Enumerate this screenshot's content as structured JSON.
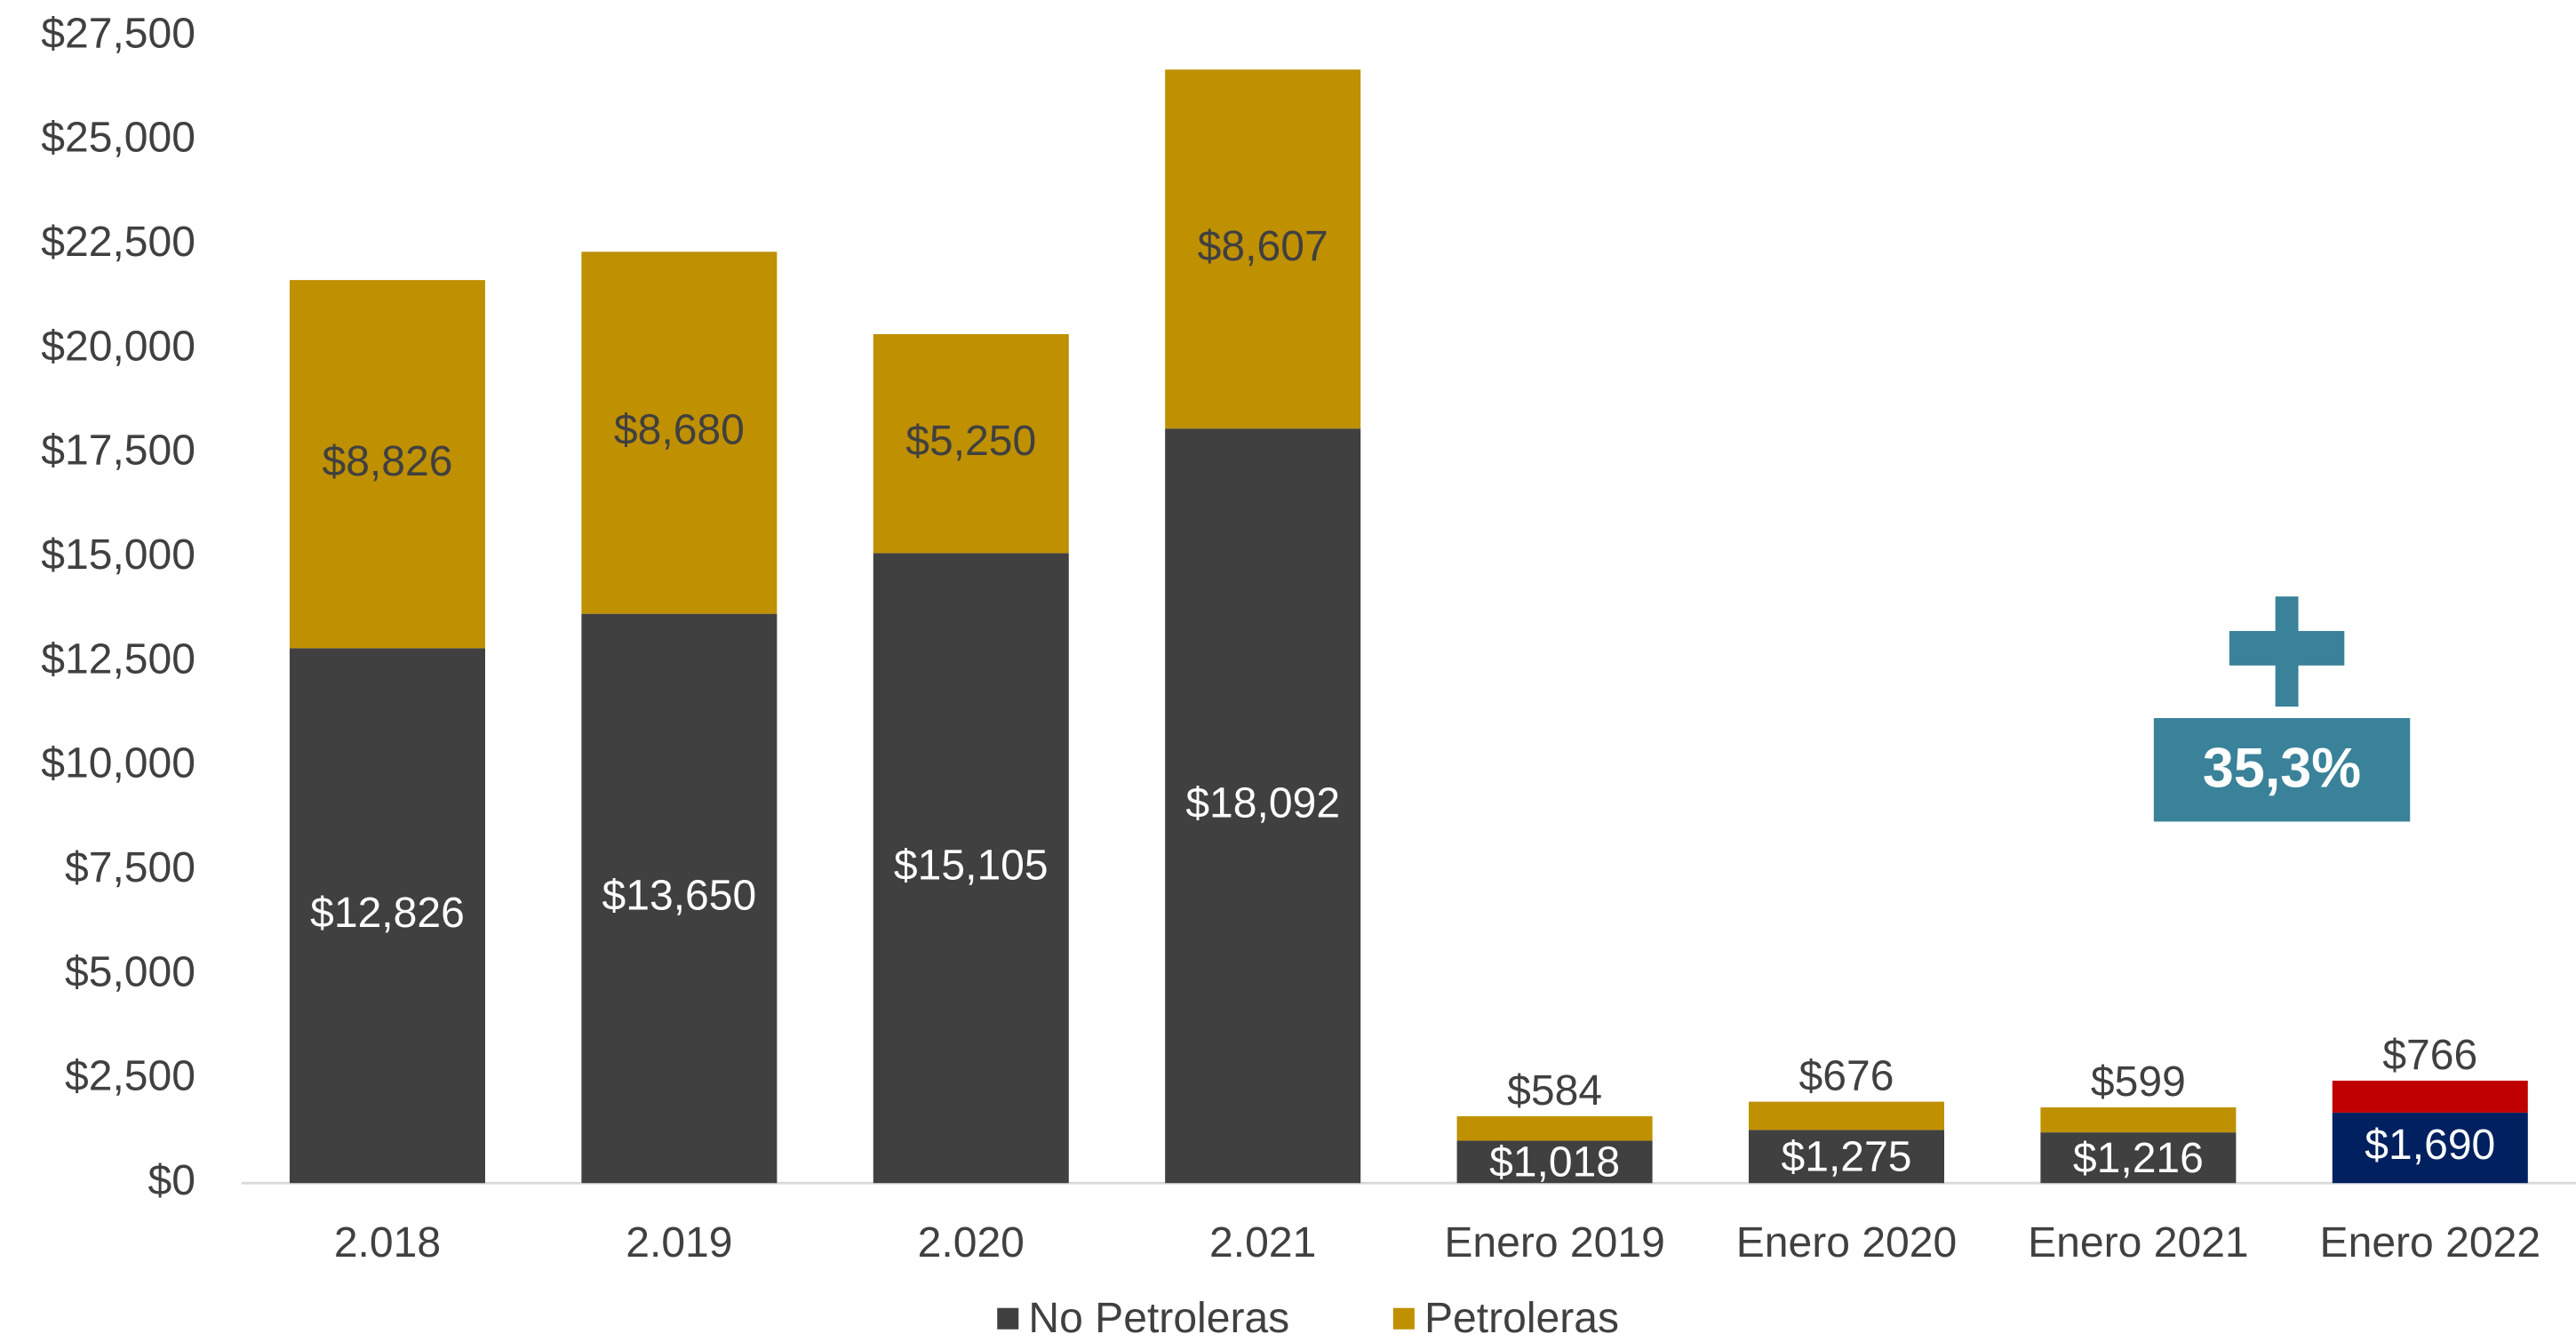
{
  "chart_data": {
    "type": "stacked_bar",
    "categories": [
      "2.018",
      "2.019",
      "2.020",
      "2.021",
      "Enero 2019",
      "Enero 2020",
      "Enero 2021",
      "Enero 2022"
    ],
    "series": [
      {
        "name": "No Petroleras",
        "color": "#404040",
        "colors": [
          "#404040",
          "#404040",
          "#404040",
          "#404040",
          "#404040",
          "#404040",
          "#404040",
          "#002060"
        ],
        "values": [
          12826,
          13650,
          15105,
          18092,
          1018,
          1275,
          1216,
          1690
        ],
        "value_labels": [
          "$12,826",
          "$13,650",
          "$15,105",
          "$18,092",
          "$1,018",
          "$1,275",
          "$1,216",
          "$1,690"
        ]
      },
      {
        "name": "Petroleras",
        "color": "#bf9000",
        "colors": [
          "#bf9000",
          "#bf9000",
          "#bf9000",
          "#bf9000",
          "#bf9000",
          "#bf9000",
          "#bf9000",
          "#c00000"
        ],
        "values": [
          8826,
          8680,
          5250,
          8607,
          584,
          676,
          599,
          766
        ],
        "value_labels": [
          "$8,826",
          "$8,680",
          "$5,250",
          "$8,607",
          "$584",
          "$676",
          "$599",
          "$766"
        ]
      }
    ],
    "ylim": [
      0,
      27500
    ],
    "yticks": [
      {
        "value": 0,
        "label": "$0"
      },
      {
        "value": 2500,
        "label": "$2,500"
      },
      {
        "value": 5000,
        "label": "$5,000"
      },
      {
        "value": 7500,
        "label": "$7,500"
      },
      {
        "value": 10000,
        "label": "$10,000"
      },
      {
        "value": 12500,
        "label": "$12,500"
      },
      {
        "value": 15000,
        "label": "$15,000"
      },
      {
        "value": 17500,
        "label": "$17,500"
      },
      {
        "value": 20000,
        "label": "$20,000"
      },
      {
        "value": 22500,
        "label": "$22,500"
      },
      {
        "value": 25000,
        "label": "$25,000"
      },
      {
        "value": 27500,
        "label": "$27,500"
      }
    ],
    "grid": false,
    "legend": "bottom",
    "annotation": "35,3%"
  }
}
